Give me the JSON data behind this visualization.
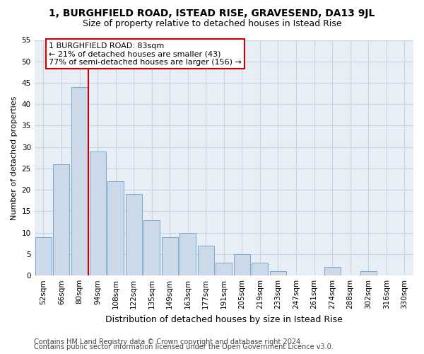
{
  "title1": "1, BURGHFIELD ROAD, ISTEAD RISE, GRAVESEND, DA13 9JL",
  "title2": "Size of property relative to detached houses in Istead Rise",
  "xlabel": "Distribution of detached houses by size in Istead Rise",
  "ylabel": "Number of detached properties",
  "categories": [
    "52sqm",
    "66sqm",
    "80sqm",
    "94sqm",
    "108sqm",
    "122sqm",
    "135sqm",
    "149sqm",
    "163sqm",
    "177sqm",
    "191sqm",
    "205sqm",
    "219sqm",
    "233sqm",
    "247sqm",
    "261sqm",
    "274sqm",
    "288sqm",
    "302sqm",
    "316sqm",
    "330sqm"
  ],
  "values": [
    9,
    26,
    44,
    29,
    22,
    19,
    13,
    9,
    10,
    7,
    3,
    5,
    3,
    1,
    0,
    0,
    2,
    0,
    1,
    0,
    0
  ],
  "bar_color": "#ccd9e8",
  "bar_edge_color": "#7aa8cc",
  "vline_color": "#cc0000",
  "annotation_text": "1 BURGHFIELD ROAD: 83sqm\n← 21% of detached houses are smaller (43)\n77% of semi-detached houses are larger (156) →",
  "annotation_box_facecolor": "white",
  "annotation_box_edgecolor": "#cc0000",
  "ylim": [
    0,
    55
  ],
  "yticks": [
    0,
    5,
    10,
    15,
    20,
    25,
    30,
    35,
    40,
    45,
    50,
    55
  ],
  "footer1": "Contains HM Land Registry data © Crown copyright and database right 2024.",
  "footer2": "Contains public sector information licensed under the Open Government Licence v3.0.",
  "fig_bg_color": "#ffffff",
  "plot_bg_color": "#e8eef5",
  "grid_color": "#c8d4e0",
  "title1_fontsize": 10,
  "title2_fontsize": 9,
  "xlabel_fontsize": 9,
  "ylabel_fontsize": 8,
  "tick_fontsize": 7.5,
  "footer_fontsize": 7,
  "annot_fontsize": 8
}
